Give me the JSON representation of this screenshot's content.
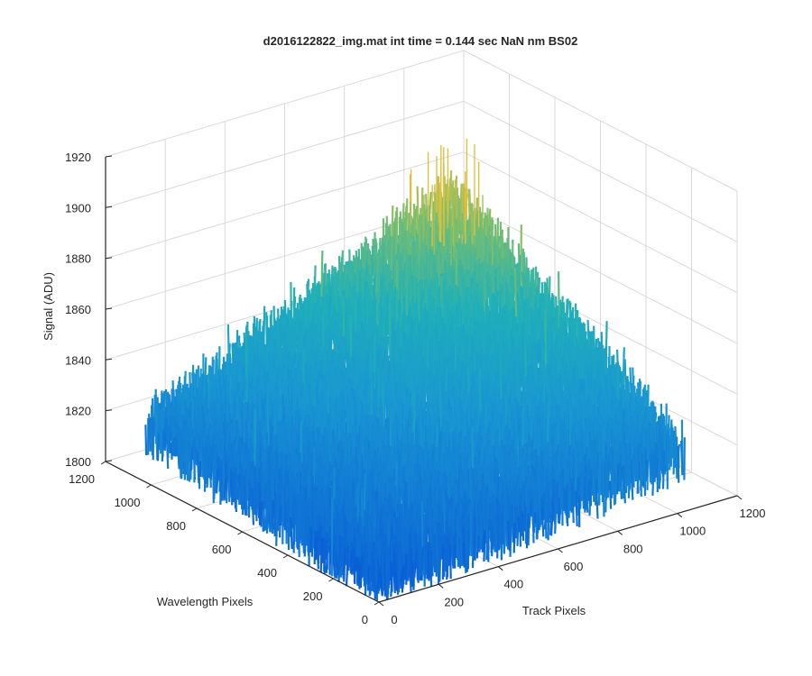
{
  "chart_data": {
    "type": "surface",
    "title": "d2016122822_img.mat int time = 0.144 sec  NaN nm BS02",
    "xlabel": "Track Pixels",
    "ylabel": "Wavelength Pixels",
    "zlabel": "Signal (ADU)",
    "xlim": [
      0,
      1200
    ],
    "ylim": [
      0,
      1200
    ],
    "zlim": [
      1800,
      1920
    ],
    "xticks": [
      "0",
      "200",
      "400",
      "600",
      "800",
      "1000",
      "1200"
    ],
    "yticks": [
      "0",
      "200",
      "400",
      "600",
      "800",
      "1000",
      "1200"
    ],
    "zticks": [
      "1800",
      "1820",
      "1840",
      "1860",
      "1880",
      "1900",
      "1920"
    ],
    "grid": true,
    "colormap": "parula",
    "colors": {
      "low": "#0a5fd6",
      "mid": "#20b0b8",
      "high": "#e0c040"
    },
    "data_extent": {
      "x": [
        0,
        1024
      ],
      "y": [
        0,
        1024
      ]
    },
    "corner_levels": {
      "x0_y0": 1812,
      "xmax_y0": 1828,
      "x0_ymax": 1826,
      "xmax_ymax": 1882
    },
    "noise_amplitude": 12,
    "peak_signal": 1905
  }
}
